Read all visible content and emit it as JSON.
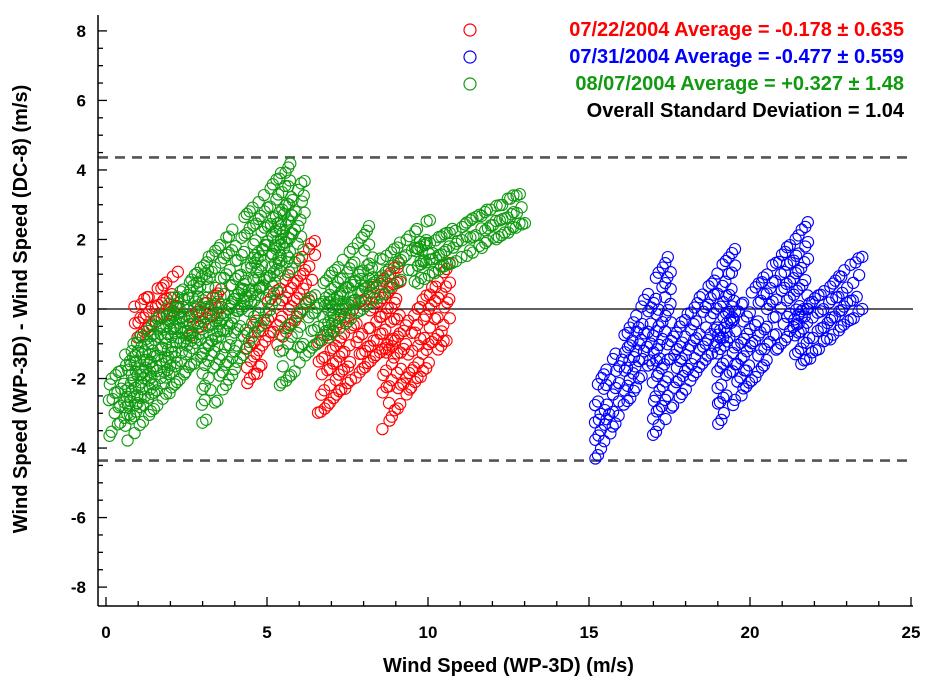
{
  "chart_data": {
    "type": "scatter",
    "xlabel": "Wind Speed (WP-3D) (m/s)",
    "ylabel": "Wind Speed (WP-3D) - Wind Speed (DC-8) (m/s)",
    "xlim": [
      0,
      25
    ],
    "ylim": [
      -8.4,
      8.4
    ],
    "x_ticks": [
      0,
      5,
      10,
      15,
      20,
      25
    ],
    "y_ticks": [
      -8,
      -6,
      -4,
      -2,
      0,
      2,
      4,
      6,
      8
    ],
    "grid": false,
    "legend_position": "top-right",
    "reference_lines": [
      {
        "y": 0,
        "style": "solid",
        "color": "#000000"
      },
      {
        "y": 4.36,
        "style": "dashed",
        "color": "#555555"
      },
      {
        "y": -4.36,
        "style": "dashed",
        "color": "#555555"
      }
    ],
    "series": [
      {
        "name": "07/22/2004 Average = -0.178 ± 0.635",
        "color": "#ff0000",
        "marker": "open-circle",
        "clusters": [
          {
            "x_from": 0.9,
            "x_to": 2.3,
            "y_from": -0.4,
            "y_to": 0.6,
            "rows": 3,
            "spacing": 0.45
          },
          {
            "x_from": 2.6,
            "x_to": 3.6,
            "y_from": -0.5,
            "y_to": 0.3,
            "rows": 2,
            "spacing": 0.5
          },
          {
            "x_from": 4.4,
            "x_to": 6.5,
            "y_from": -1.4,
            "y_to": 1.3,
            "rows": 4,
            "spacing": 0.5
          },
          {
            "x_from": 6.6,
            "x_to": 9.2,
            "y_from": -2.0,
            "y_to": 0.4,
            "rows": 5,
            "spacing": 0.5
          },
          {
            "x_from": 8.6,
            "x_to": 10.7,
            "y_from": -2.4,
            "y_to": 0.3,
            "rows": 5,
            "spacing": 0.5
          }
        ]
      },
      {
        "name": "07/31/2004 Average = -0.477 ± 0.559",
        "color": "#0000ff",
        "marker": "open-circle",
        "clusters": [
          {
            "x_from": 15.2,
            "x_to": 17.6,
            "y_from": -3.3,
            "y_to": 0.7,
            "rows": 5,
            "spacing": 0.5
          },
          {
            "x_from": 17.0,
            "x_to": 19.6,
            "y_from": -2.6,
            "y_to": 0.8,
            "rows": 5,
            "spacing": 0.5
          },
          {
            "x_from": 19.0,
            "x_to": 21.8,
            "y_from": -2.0,
            "y_to": 1.2,
            "rows": 6,
            "spacing": 0.5
          },
          {
            "x_from": 21.4,
            "x_to": 23.5,
            "y_from": -1.0,
            "y_to": 0.8,
            "rows": 4,
            "spacing": 0.5
          }
        ]
      },
      {
        "name": "08/07/2004 Average = +0.327 ± 1.48",
        "color": "#109a10",
        "marker": "open-circle",
        "clusters": [
          {
            "x_from": 0.1,
            "x_to": 3.2,
            "y_from": -2.9,
            "y_to": 0.4,
            "rows": 4,
            "spacing": 0.5
          },
          {
            "x_from": 0.6,
            "x_to": 5.8,
            "y_from": -2.6,
            "y_to": 3.0,
            "rows": 6,
            "spacing": 0.5
          },
          {
            "x_from": 3.0,
            "x_to": 6.2,
            "y_from": -2.3,
            "y_to": 2.8,
            "rows": 5,
            "spacing": 0.5
          },
          {
            "x_from": 5.4,
            "x_to": 8.3,
            "y_from": -1.5,
            "y_to": 1.7,
            "rows": 4,
            "spacing": 0.5
          },
          {
            "x_from": 6.8,
            "x_to": 10.2,
            "y_from": -0.4,
            "y_to": 2.2,
            "rows": 3,
            "spacing": 0.5
          },
          {
            "x_from": 9.6,
            "x_to": 13.1,
            "y_from": 1.2,
            "y_to": 3.0,
            "rows": 3,
            "spacing": 0.45
          }
        ]
      }
    ],
    "annotations": [
      {
        "text": "Overall Standard Deviation = 1.04",
        "color": "#000000"
      }
    ]
  }
}
